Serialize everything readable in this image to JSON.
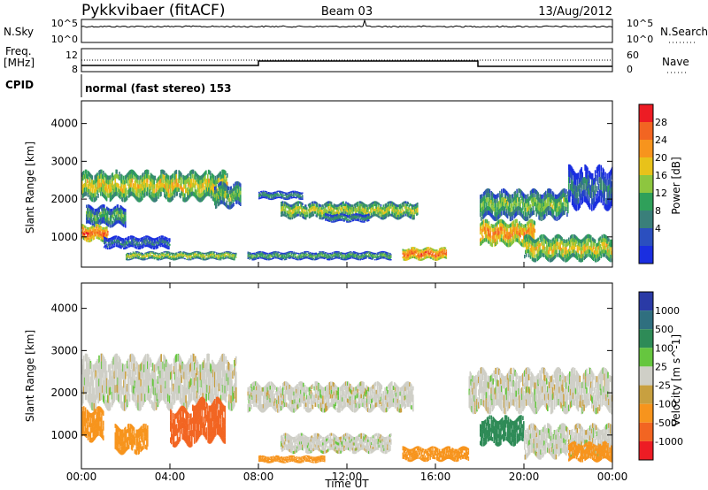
{
  "header": {
    "station": "Pykkvibaer (fitACF)",
    "beam": "Beam 03",
    "date": "13/Aug/2012"
  },
  "noise_panel": {
    "left_label": "N.Sky",
    "right_label": "N.Search",
    "left_ticks": [
      "10^5",
      "10^0"
    ],
    "right_ticks": [
      "10^5",
      "10^0"
    ]
  },
  "freq_panel": {
    "left_label_1": "Freq.",
    "left_label_2": "[MHz]",
    "right_label": "Nave",
    "left_ticks": [
      "12",
      "8"
    ],
    "right_ticks": [
      "60",
      "0"
    ]
  },
  "cpid": {
    "label": "CPID",
    "text": "normal (fast stereo) 153"
  },
  "chart_data": [
    {
      "type": "heatmap",
      "panel": "power",
      "ylabel": "Slant Range [km]",
      "ylim": [
        200,
        4600
      ],
      "yticks": [
        "1000",
        "2000",
        "3000",
        "4000"
      ],
      "colorbar": {
        "label": "Power [dB]",
        "ticks": [
          "4",
          "8",
          "12",
          "16",
          "20",
          "24",
          "28"
        ],
        "colors": [
          "#1a2ee0",
          "#2b4fbf",
          "#3a7f7a",
          "#2fa05a",
          "#8dc63f",
          "#e8c21a",
          "#f7941d",
          "#f26522",
          "#ed1c24"
        ],
        "range": [
          0,
          30
        ]
      },
      "bands": [
        {
          "t0": 0.0,
          "t1": 6.6,
          "r0": 2700,
          "r1": 2000,
          "level": 20
        },
        {
          "t0": 0.2,
          "t1": 2.0,
          "r0": 1800,
          "r1": 1300,
          "level": 14
        },
        {
          "t0": 0.0,
          "t1": 1.2,
          "r0": 1300,
          "r1": 900,
          "level": 26
        },
        {
          "t0": 1.0,
          "t1": 4.0,
          "r0": 1000,
          "r1": 700,
          "level": 10
        },
        {
          "t0": 2.0,
          "t1": 7.0,
          "r0": 600,
          "r1": 400,
          "level": 18
        },
        {
          "t0": 6.0,
          "t1": 7.2,
          "r0": 2400,
          "r1": 1800,
          "level": 16
        },
        {
          "t0": 8.0,
          "t1": 10.0,
          "r0": 2200,
          "r1": 2000,
          "level": 12
        },
        {
          "t0": 9.0,
          "t1": 15.2,
          "r0": 1900,
          "r1": 1500,
          "level": 18
        },
        {
          "t0": 11.0,
          "t1": 13.0,
          "r0": 1600,
          "r1": 1400,
          "level": 12
        },
        {
          "t0": 7.5,
          "t1": 14.0,
          "r0": 600,
          "r1": 400,
          "level": 14
        },
        {
          "t0": 14.5,
          "t1": 16.5,
          "r0": 700,
          "r1": 400,
          "level": 26
        },
        {
          "t0": 18.0,
          "t1": 22.0,
          "r0": 2200,
          "r1": 1500,
          "level": 16
        },
        {
          "t0": 18.0,
          "t1": 20.5,
          "r0": 1400,
          "r1": 800,
          "level": 24
        },
        {
          "t0": 20.0,
          "t1": 24.0,
          "r0": 1000,
          "r1": 400,
          "level": 20
        },
        {
          "t0": 22.0,
          "t1": 24.0,
          "r0": 2800,
          "r1": 1800,
          "level": 10
        }
      ]
    },
    {
      "type": "heatmap",
      "panel": "velocity",
      "xlabel": "Time UT",
      "ylabel": "Slant Range [km]",
      "ylim": [
        200,
        4600
      ],
      "xlim": [
        0,
        24
      ],
      "xticks": [
        "00:00",
        "04:00",
        "08:00",
        "12:00",
        "16:00",
        "20:00",
        "00:00"
      ],
      "yticks": [
        "1000",
        "2000",
        "3000",
        "4000"
      ],
      "colorbar": {
        "label": "Velocity [m s^-1]",
        "ticks": [
          "1000",
          "500",
          "100",
          "25",
          "-25",
          "-100",
          "-500",
          "-1000"
        ],
        "colors": [
          "#2a3aa6",
          "#2f6f7f",
          "#2e8b57",
          "#66c63f",
          "#cfcfc7",
          "#c8a040",
          "#f7941d",
          "#f26522",
          "#ed1c24"
        ]
      },
      "bands": [
        {
          "t0": 0.0,
          "t1": 7.0,
          "r0": 2800,
          "r1": 1700,
          "level": 0
        },
        {
          "t0": 0.0,
          "t1": 1.0,
          "r0": 1600,
          "r1": 900,
          "level": -300
        },
        {
          "t0": 1.5,
          "t1": 3.0,
          "r0": 1200,
          "r1": 600,
          "level": -200
        },
        {
          "t0": 4.0,
          "t1": 5.0,
          "r0": 1600,
          "r1": 800,
          "level": -600
        },
        {
          "t0": 5.0,
          "t1": 6.5,
          "r0": 1800,
          "r1": 900,
          "level": -800
        },
        {
          "t0": 7.5,
          "t1": 15.0,
          "r0": 2200,
          "r1": 1600,
          "level": 0
        },
        {
          "t0": 9.0,
          "t1": 14.0,
          "r0": 1000,
          "r1": 600,
          "level": 0
        },
        {
          "t0": 8.0,
          "t1": 11.0,
          "r0": 500,
          "r1": 350,
          "level": -300
        },
        {
          "t0": 14.5,
          "t1": 17.5,
          "r0": 700,
          "r1": 400,
          "level": -400
        },
        {
          "t0": 17.5,
          "t1": 24.0,
          "r0": 2500,
          "r1": 1600,
          "level": 0
        },
        {
          "t0": 18.0,
          "t1": 20.0,
          "r0": 1400,
          "r1": 800,
          "level": 300
        },
        {
          "t0": 20.0,
          "t1": 24.0,
          "r0": 1200,
          "r1": 500,
          "level": 0
        },
        {
          "t0": 22.0,
          "t1": 24.0,
          "r0": 800,
          "r1": 400,
          "level": -300
        }
      ]
    }
  ]
}
